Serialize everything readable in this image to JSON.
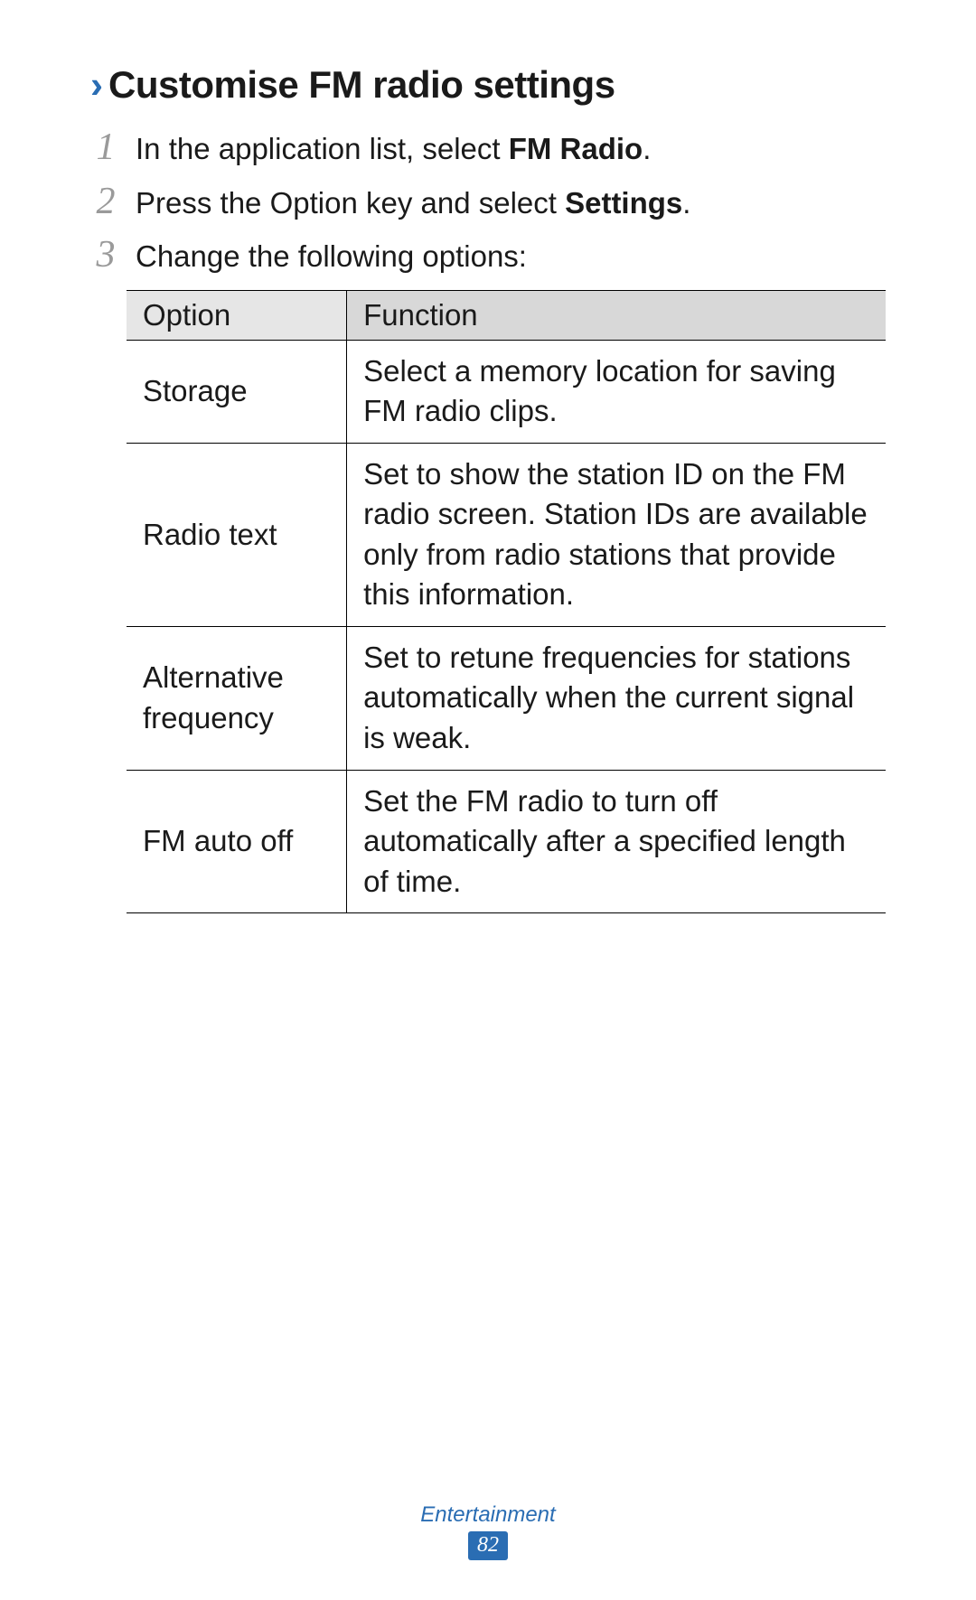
{
  "heading": {
    "chevron": "›",
    "text": "Customise FM radio settings"
  },
  "steps": [
    {
      "pre": "In the application list, select ",
      "bold": "FM Radio",
      "post": "."
    },
    {
      "pre": "Press the Option key and select ",
      "bold": "Settings",
      "post": "."
    },
    {
      "pre": "Change the following options:",
      "bold": "",
      "post": ""
    }
  ],
  "table": {
    "headers": {
      "col1": "Option",
      "col2": "Function"
    },
    "rows": [
      {
        "option": "Storage",
        "function": "Select a memory location for saving FM radio clips."
      },
      {
        "option": "Radio text",
        "function": "Set to show the station ID on the FM radio screen. Station IDs are available only from radio stations that provide this information."
      },
      {
        "option": "Alternative frequency",
        "function": "Set to retune frequencies for stations automatically when the current signal is weak."
      },
      {
        "option": "FM auto off",
        "function": "Set the FM radio to turn off automatically after a specified length of time."
      }
    ]
  },
  "footer": {
    "category": "Entertainment",
    "page": "82"
  },
  "colors": {
    "accent": "#2a6db3",
    "text": "#1a1a1a",
    "step_number": "#9a9a9a",
    "th_bg_left": "#e6e6e6",
    "th_bg_right": "#d8d8d8",
    "border": "#000000",
    "background": "#ffffff"
  },
  "typography": {
    "heading_fontsize": 42,
    "body_fontsize": 33,
    "footer_fontsize": 24,
    "step_number_fontsize": 42
  }
}
